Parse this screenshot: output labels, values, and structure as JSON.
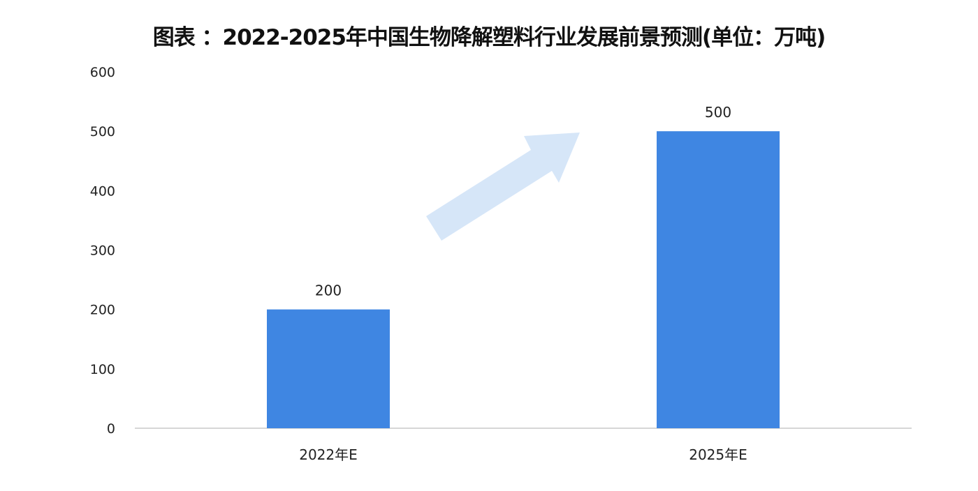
{
  "chart_data": {
    "type": "bar",
    "title": "图表 ：2022-2025年中国生物降解塑料行业发展前景预测(单位：万吨)",
    "categories": [
      "2022年E",
      "2025年E"
    ],
    "values": [
      200,
      500
    ],
    "data_labels": [
      "200",
      "500"
    ],
    "xlabel": "",
    "ylabel": "",
    "ylim": [
      0,
      600
    ],
    "yticks": [
      0,
      100,
      200,
      300,
      400,
      500,
      600
    ],
    "grid": false,
    "legend": "none",
    "bar_color": "#3f86e2",
    "arrow_color": "#d6e6f8"
  }
}
